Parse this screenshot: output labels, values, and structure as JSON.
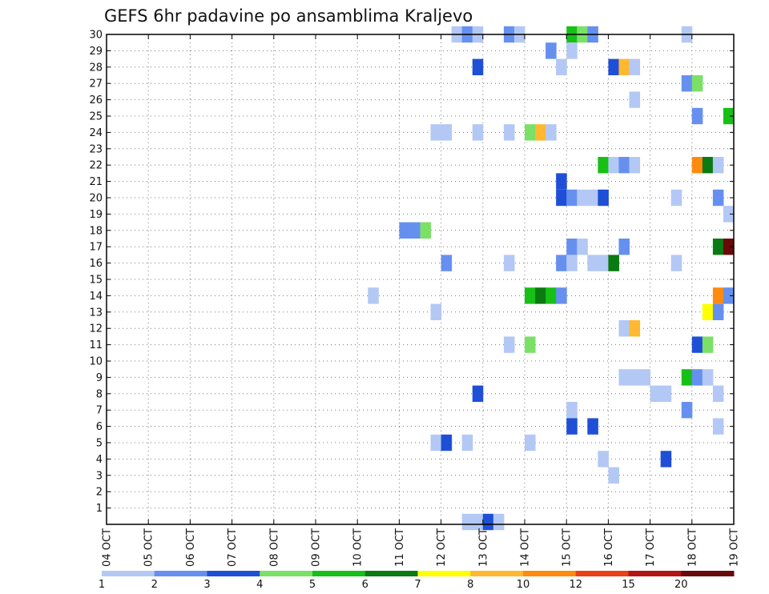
{
  "chart_data": {
    "type": "heatmap",
    "title": "GEFS 6hr padavine po ansamblima Kraljevo",
    "xlabel": "",
    "ylabel": "",
    "x_ticks": [
      "04 OCT",
      "05 OCT",
      "06 OCT",
      "07 OCT",
      "08 OCT",
      "09 OCT",
      "10 OCT",
      "11 OCT",
      "12 OCT",
      "13 OCT",
      "14 OCT",
      "15 OCT",
      "16 OCT",
      "17 OCT",
      "18 OCT",
      "19 OCT"
    ],
    "y_ticks": [
      "1",
      "2",
      "3",
      "4",
      "5",
      "6",
      "7",
      "8",
      "9",
      "10",
      "11",
      "12",
      "13",
      "14",
      "15",
      "16",
      "17",
      "18",
      "19",
      "20",
      "21",
      "22",
      "23",
      "24",
      "25",
      "26",
      "27",
      "28",
      "29",
      "30"
    ],
    "xlim": [
      0,
      60
    ],
    "ylim": [
      0,
      30
    ],
    "grid": true,
    "colorbar": {
      "position": "bottom",
      "colors": [
        "#b3c8f4",
        "#6690ef",
        "#1f4fd6",
        "#7be066",
        "#16c016",
        "#0a7a12",
        "#ffff00",
        "#ffb830",
        "#ff8a10",
        "#ec4015",
        "#b41414",
        "#6a0909"
      ],
      "labels": [
        "1",
        "2",
        "3",
        "4",
        "5",
        "6",
        "7",
        "8",
        "10",
        "12",
        "15",
        "20"
      ]
    },
    "cells": [
      [
        33,
        30,
        0
      ],
      [
        34,
        30,
        1
      ],
      [
        35,
        30,
        0
      ],
      [
        38,
        30,
        1
      ],
      [
        39,
        30,
        0
      ],
      [
        44,
        30,
        4
      ],
      [
        45,
        30,
        3
      ],
      [
        46,
        30,
        1
      ],
      [
        55,
        30,
        0
      ],
      [
        42,
        29,
        1
      ],
      [
        44,
        29,
        0
      ],
      [
        35,
        28,
        2
      ],
      [
        43,
        28,
        0
      ],
      [
        48,
        28,
        2
      ],
      [
        49,
        28,
        7
      ],
      [
        50,
        28,
        0
      ],
      [
        55,
        27,
        1
      ],
      [
        56,
        27,
        3
      ],
      [
        50,
        26,
        0
      ],
      [
        56,
        25,
        1
      ],
      [
        59,
        25,
        4
      ],
      [
        31,
        24,
        0
      ],
      [
        32,
        24,
        0
      ],
      [
        35,
        24,
        0
      ],
      [
        38,
        24,
        0
      ],
      [
        40,
        24,
        3
      ],
      [
        41,
        24,
        7
      ],
      [
        42,
        24,
        0
      ],
      [
        47,
        22,
        4
      ],
      [
        48,
        22,
        0
      ],
      [
        49,
        22,
        1
      ],
      [
        50,
        22,
        0
      ],
      [
        56,
        22,
        8
      ],
      [
        57,
        22,
        5
      ],
      [
        58,
        22,
        0
      ],
      [
        43,
        21,
        2
      ],
      [
        43,
        20,
        2
      ],
      [
        44,
        20,
        1
      ],
      [
        45,
        20,
        0
      ],
      [
        46,
        20,
        0
      ],
      [
        47,
        20,
        2
      ],
      [
        54,
        20,
        0
      ],
      [
        58,
        20,
        1
      ],
      [
        59,
        19,
        0
      ],
      [
        28,
        18,
        1
      ],
      [
        29,
        18,
        1
      ],
      [
        30,
        18,
        3
      ],
      [
        44,
        17,
        1
      ],
      [
        45,
        17,
        0
      ],
      [
        49,
        17,
        1
      ],
      [
        58,
        17,
        5
      ],
      [
        59,
        17,
        11
      ],
      [
        32,
        16,
        1
      ],
      [
        38,
        16,
        0
      ],
      [
        43,
        16,
        1
      ],
      [
        44,
        16,
        0
      ],
      [
        46,
        16,
        0
      ],
      [
        47,
        16,
        0
      ],
      [
        48,
        16,
        5
      ],
      [
        54,
        16,
        0
      ],
      [
        25,
        14,
        0
      ],
      [
        40,
        14,
        4
      ],
      [
        41,
        14,
        5
      ],
      [
        42,
        14,
        4
      ],
      [
        43,
        14,
        1
      ],
      [
        58,
        14,
        8
      ],
      [
        59,
        14,
        1
      ],
      [
        31,
        13,
        0
      ],
      [
        57,
        13,
        6
      ],
      [
        58,
        13,
        1
      ],
      [
        49,
        12,
        0
      ],
      [
        50,
        12,
        7
      ],
      [
        38,
        11,
        0
      ],
      [
        40,
        11,
        3
      ],
      [
        56,
        11,
        2
      ],
      [
        57,
        11,
        3
      ],
      [
        49,
        9,
        0
      ],
      [
        50,
        9,
        0
      ],
      [
        51,
        9,
        0
      ],
      [
        55,
        9,
        4
      ],
      [
        56,
        9,
        1
      ],
      [
        57,
        9,
        0
      ],
      [
        35,
        8,
        2
      ],
      [
        52,
        8,
        0
      ],
      [
        53,
        8,
        0
      ],
      [
        58,
        8,
        0
      ],
      [
        44,
        7,
        0
      ],
      [
        55,
        7,
        1
      ],
      [
        44,
        6,
        2
      ],
      [
        46,
        6,
        2
      ],
      [
        58,
        6,
        0
      ],
      [
        31,
        5,
        0
      ],
      [
        32,
        5,
        2
      ],
      [
        34,
        5,
        0
      ],
      [
        40,
        5,
        0
      ],
      [
        47,
        4,
        0
      ],
      [
        53,
        4,
        2
      ],
      [
        48,
        3,
        0
      ],
      [
        34,
        0,
        0
      ],
      [
        35,
        0,
        0
      ],
      [
        36,
        0,
        2
      ],
      [
        37,
        0,
        0
      ]
    ]
  }
}
